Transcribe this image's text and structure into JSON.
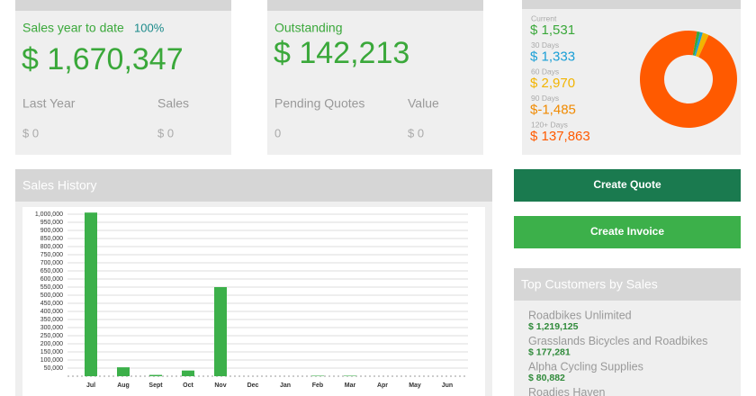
{
  "cards": [
    {
      "title": "Sales year to date",
      "percent": "100%",
      "amount": "$ 1,670,347",
      "col1_label": "Last Year",
      "col2_label": "Sales",
      "col1_value": "$ 0",
      "col2_value": "$ 0"
    },
    {
      "title": "Outstanding",
      "amount": "$ 142,213",
      "col1_label": "Pending Quotes",
      "col2_label": "Value",
      "col1_value": "0",
      "col2_value": "$ 0"
    }
  ],
  "buttons": [
    "Create Quote",
    "Create Invoice"
  ],
  "top_customers": {
    "title": "Top Customers by Sales",
    "items": [
      {
        "name": "Roadbikes Unlimited",
        "amount": "$ 1,219,125"
      },
      {
        "name": "Grasslands Bicycles and Roadbikes",
        "amount": "$ 177,281"
      },
      {
        "name": "Alpha Cycling Supplies",
        "amount": "$ 80,882"
      },
      {
        "name": "Roadies Haven"
      }
    ]
  },
  "chart_data": [
    {
      "type": "bar",
      "title": "Sales History",
      "categories": [
        "Jul",
        "Aug",
        "Sept",
        "Oct",
        "Nov",
        "Dec",
        "Jan",
        "Feb",
        "Mar",
        "Apr",
        "May",
        "Jun"
      ],
      "values": [
        1010000,
        55000,
        8000,
        35000,
        550000,
        0,
        0,
        3000,
        3000,
        0,
        0,
        0
      ],
      "color": "#3cb04a",
      "ylim": [
        0,
        1000000
      ],
      "yticks": [
        {
          "value": 50000,
          "label": "50,000"
        },
        {
          "value": 100000,
          "label": "100,000"
        },
        {
          "value": 150000,
          "label": "150,000"
        },
        {
          "value": 200000,
          "label": "200,000"
        },
        {
          "value": 250000,
          "label": "250,000"
        },
        {
          "value": 300000,
          "label": "300,000"
        },
        {
          "value": 350000,
          "label": "350,000"
        },
        {
          "value": 400000,
          "label": "400,000"
        },
        {
          "value": 450000,
          "label": "450,000"
        },
        {
          "value": 500000,
          "label": "500,000"
        },
        {
          "value": 550000,
          "label": "550,000"
        },
        {
          "value": 600000,
          "label": "600,000"
        },
        {
          "value": 650000,
          "label": "650,000"
        },
        {
          "value": 700000,
          "label": "700,000"
        },
        {
          "value": 750000,
          "label": "750,000"
        },
        {
          "value": 800000,
          "label": "800,000"
        },
        {
          "value": 850000,
          "label": "850,000"
        },
        {
          "value": 900000,
          "label": "900,000"
        },
        {
          "value": 950000,
          "label": "950,000"
        },
        {
          "value": 1000000,
          "label": "1,000,000"
        }
      ],
      "grid": true
    },
    {
      "type": "pie",
      "categories": [
        "Current",
        "30 Days",
        "60 Days",
        "90 Days",
        "120+ Days"
      ],
      "values": [
        1531,
        1333,
        2970,
        -1485,
        137863
      ],
      "value_labels": [
        "$ 1,531",
        "$ 1,333",
        "$ 2,970",
        "$-1,485",
        "$ 137,863"
      ],
      "colors": [
        "#3aa83a",
        "#1a9fd6",
        "#f2b400",
        "#f08a00",
        "#ff5a00"
      ]
    }
  ]
}
